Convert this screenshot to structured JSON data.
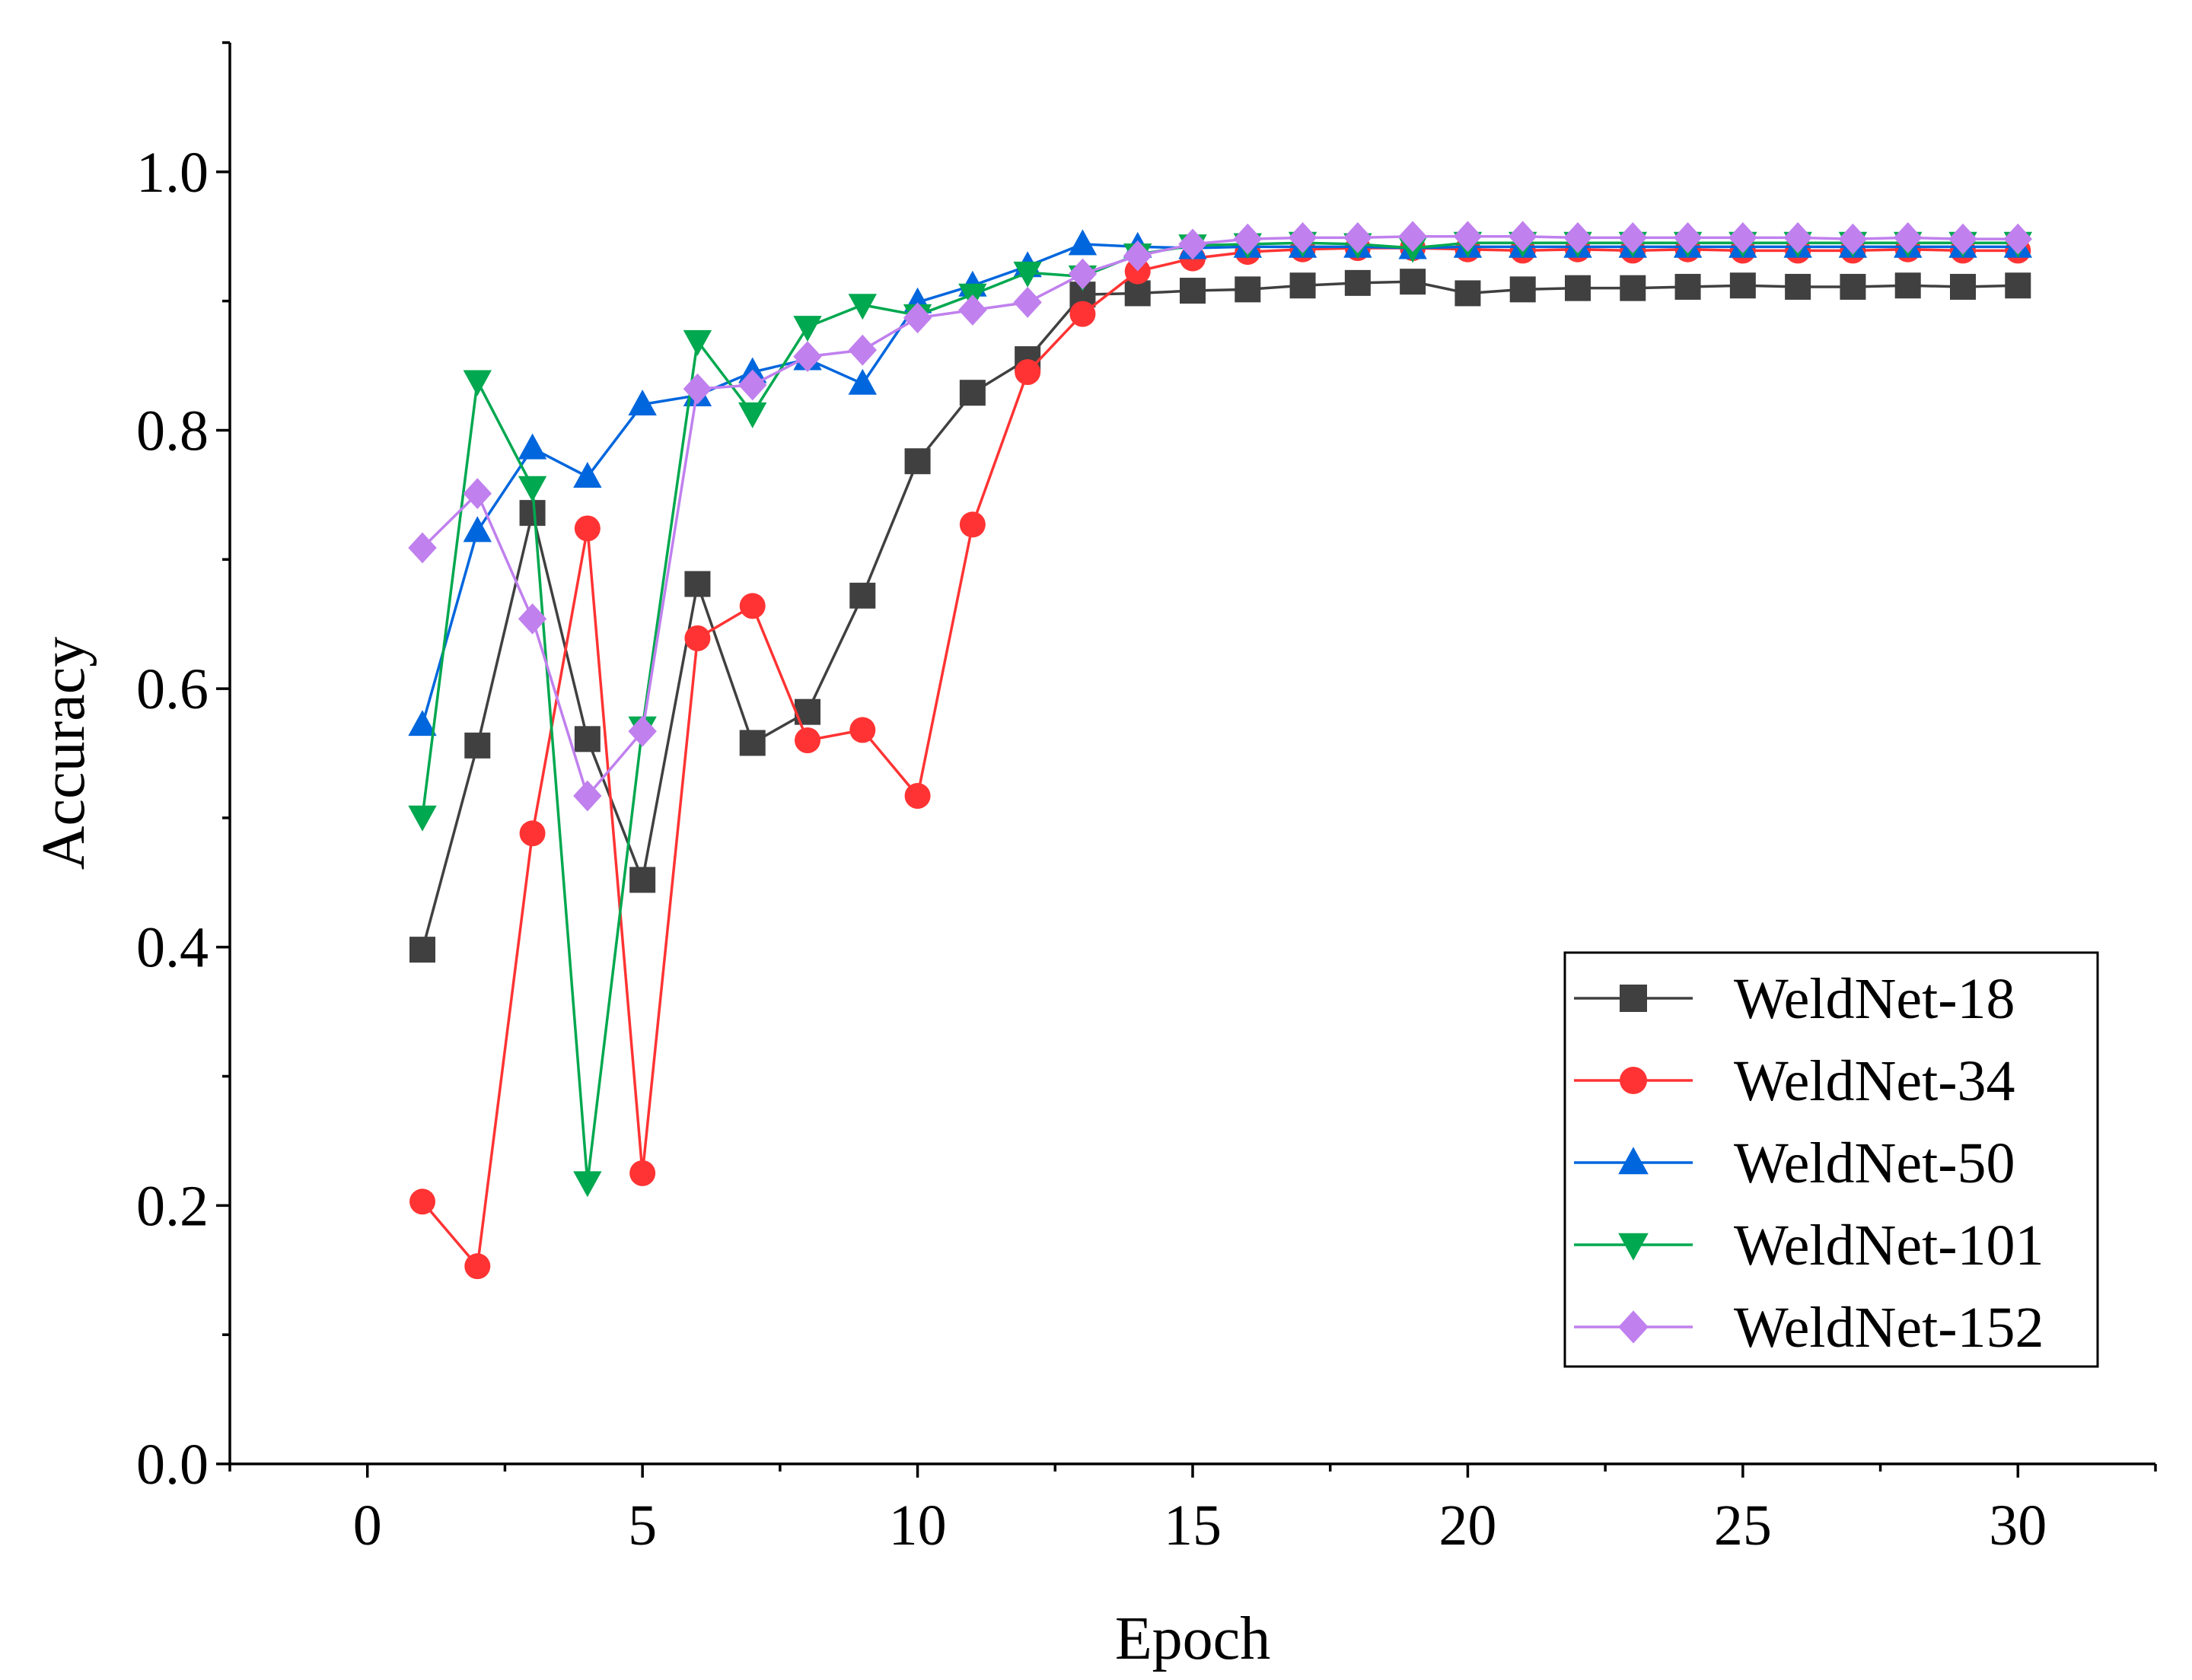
{
  "chart_data": {
    "type": "line",
    "title": "",
    "xlabel": "Epoch",
    "ylabel": "Accuracy",
    "xlim": [
      -2.5,
      32.5
    ],
    "ylim": [
      0.0,
      1.1
    ],
    "x_ticks": [
      "0",
      "5",
      "10",
      "15",
      "20",
      "25",
      "30"
    ],
    "y_ticks": [
      "0.0",
      "0.2",
      "0.4",
      "0.6",
      "0.8",
      "1.0"
    ],
    "grid": false,
    "legend_position": "bottom-right",
    "x": [
      1,
      2,
      3,
      4,
      5,
      6,
      7,
      8,
      9,
      10,
      11,
      12,
      13,
      14,
      15,
      16,
      17,
      18,
      19,
      20,
      21,
      22,
      23,
      24,
      25,
      26,
      27,
      28,
      29,
      30
    ],
    "series": [
      {
        "name": "WeldNet-18",
        "color": "#404040",
        "marker": "square",
        "values": [
          0.398,
          0.556,
          0.736,
          0.561,
          0.452,
          0.681,
          0.558,
          0.582,
          0.672,
          0.776,
          0.829,
          0.855,
          0.905,
          0.906,
          0.908,
          0.909,
          0.912,
          0.914,
          0.915,
          0.906,
          0.909,
          0.91,
          0.91,
          0.911,
          0.912,
          0.911,
          0.911,
          0.912,
          0.911,
          0.912
        ]
      },
      {
        "name": "WeldNet-34",
        "color": "#ff3333",
        "marker": "circle",
        "values": [
          0.203,
          0.153,
          0.488,
          0.724,
          0.225,
          0.639,
          0.664,
          0.56,
          0.568,
          0.517,
          0.727,
          0.845,
          0.89,
          0.923,
          0.933,
          0.938,
          0.94,
          0.941,
          0.941,
          0.94,
          0.939,
          0.94,
          0.939,
          0.94,
          0.939,
          0.939,
          0.939,
          0.94,
          0.939,
          0.939
        ]
      },
      {
        "name": "WeldNet-50",
        "color": "#0066dd",
        "marker": "triangle-up",
        "values": [
          0.572,
          0.722,
          0.786,
          0.764,
          0.82,
          0.827,
          0.845,
          0.855,
          0.836,
          0.899,
          0.912,
          0.927,
          0.944,
          0.942,
          0.941,
          0.942,
          0.942,
          0.942,
          0.941,
          0.942,
          0.942,
          0.942,
          0.942,
          0.942,
          0.942,
          0.942,
          0.942,
          0.942,
          0.942,
          0.942
        ]
      },
      {
        "name": "WeldNet-101",
        "color": "#00a84f",
        "marker": "triangle-down",
        "values": [
          0.501,
          0.838,
          0.756,
          0.218,
          0.57,
          0.869,
          0.813,
          0.88,
          0.897,
          0.889,
          0.905,
          0.922,
          0.919,
          0.936,
          0.943,
          0.944,
          0.945,
          0.944,
          0.941,
          0.945,
          0.945,
          0.945,
          0.945,
          0.945,
          0.945,
          0.945,
          0.945,
          0.945,
          0.945,
          0.945
        ]
      },
      {
        "name": "WeldNet-152",
        "color": "#c080ee",
        "marker": "diamond",
        "values": [
          0.709,
          0.751,
          0.654,
          0.517,
          0.567,
          0.832,
          0.835,
          0.857,
          0.862,
          0.887,
          0.893,
          0.899,
          0.921,
          0.935,
          0.944,
          0.948,
          0.949,
          0.949,
          0.95,
          0.95,
          0.95,
          0.949,
          0.949,
          0.949,
          0.949,
          0.949,
          0.948,
          0.949,
          0.948,
          0.948
        ]
      }
    ]
  }
}
